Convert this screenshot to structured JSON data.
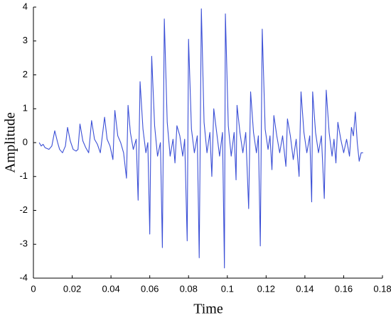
{
  "chart_data": {
    "type": "line",
    "x_label": "Time",
    "y_label": "Amplitude",
    "color": "#3b4fd6",
    "xlim": [
      0,
      0.18
    ],
    "xticks": [
      0,
      0.02,
      0.04,
      0.06,
      0.08,
      0.1,
      0.12,
      0.14,
      0.16,
      0.18
    ],
    "ylim": [
      -4,
      4
    ],
    "yticks": [
      -4,
      -3,
      -2,
      -1,
      0,
      1,
      2,
      3,
      4
    ],
    "x": [
      0.003,
      0.004,
      0.005,
      0.006,
      0.008,
      0.0095,
      0.011,
      0.0125,
      0.0135,
      0.015,
      0.0165,
      0.0176,
      0.019,
      0.0205,
      0.022,
      0.023,
      0.024,
      0.0255,
      0.027,
      0.0285,
      0.03,
      0.0315,
      0.033,
      0.0345,
      0.0367,
      0.038,
      0.0395,
      0.041,
      0.042,
      0.0435,
      0.045,
      0.0465,
      0.048,
      0.0488,
      0.05,
      0.0515,
      0.053,
      0.054,
      0.055,
      0.0565,
      0.058,
      0.059,
      0.06,
      0.061,
      0.0625,
      0.064,
      0.0655,
      0.0665,
      0.0675,
      0.069,
      0.0705,
      0.072,
      0.073,
      0.074,
      0.0755,
      0.077,
      0.078,
      0.0793,
      0.08,
      0.0815,
      0.083,
      0.0845,
      0.0855,
      0.0866,
      0.088,
      0.0895,
      0.091,
      0.092,
      0.093,
      0.0945,
      0.096,
      0.0975,
      0.0985,
      0.099,
      0.1005,
      0.102,
      0.1035,
      0.1045,
      0.105,
      0.1065,
      0.108,
      0.1095,
      0.111,
      0.112,
      0.1135,
      0.115,
      0.116,
      0.117,
      0.118,
      0.1195,
      0.121,
      0.122,
      0.123,
      0.124,
      0.1255,
      0.127,
      0.1285,
      0.1302,
      0.131,
      0.1325,
      0.134,
      0.1355,
      0.137,
      0.138,
      0.1395,
      0.141,
      0.1425,
      0.1435,
      0.144,
      0.1455,
      0.147,
      0.1485,
      0.15,
      0.151,
      0.1525,
      0.154,
      0.155,
      0.156,
      0.157,
      0.1585,
      0.16,
      0.1615,
      0.163,
      0.164,
      0.165,
      0.166,
      0.167,
      0.168,
      0.169,
      0.17
    ],
    "y": [
      0,
      -0.1,
      -0.05,
      -0.15,
      -0.2,
      -0.1,
      0.35,
      0,
      -0.2,
      -0.3,
      -0.1,
      0.45,
      0.05,
      -0.2,
      -0.25,
      -0.2,
      0.55,
      0.05,
      -0.15,
      -0.3,
      0.65,
      0.1,
      -0.05,
      -0.3,
      0.75,
      0.1,
      -0.1,
      -0.5,
      0.95,
      0.2,
      0,
      -0.3,
      -1.05,
      1.1,
      0.3,
      -0.2,
      0.1,
      -1.7,
      1.8,
      0.4,
      -0.3,
      0,
      -2.7,
      2.55,
      0.5,
      -0.4,
      0,
      -3.1,
      3.65,
      0.6,
      -0.4,
      0.1,
      -0.6,
      0.5,
      0.2,
      -0.4,
      0.1,
      -2.9,
      3.05,
      0.4,
      -0.3,
      0.2,
      -3.4,
      3.95,
      0.6,
      -0.3,
      0.3,
      -1,
      1,
      0.3,
      -0.4,
      0.3,
      -3.7,
      3.8,
      0.5,
      -0.4,
      0.3,
      -1.1,
      1.1,
      0.3,
      -0.3,
      0.3,
      -1.95,
      1.5,
      0.3,
      -0.3,
      0.2,
      -3.05,
      3.35,
      0.4,
      -0.2,
      0.2,
      -0.8,
      0.8,
      0.2,
      -0.3,
      0.2,
      -0.7,
      0.7,
      0.2,
      -0.5,
      0.1,
      -1,
      1.5,
      0.3,
      -0.3,
      0.2,
      -1.75,
      1.5,
      0.3,
      -0.3,
      0.2,
      -1.65,
      1.55,
      0.3,
      -0.4,
      0.1,
      -0.6,
      0.6,
      0.1,
      -0.3,
      0.1,
      -0.4,
      0.45,
      0.2,
      0.9,
      0,
      -0.55,
      -0.3,
      -0.3
    ]
  }
}
